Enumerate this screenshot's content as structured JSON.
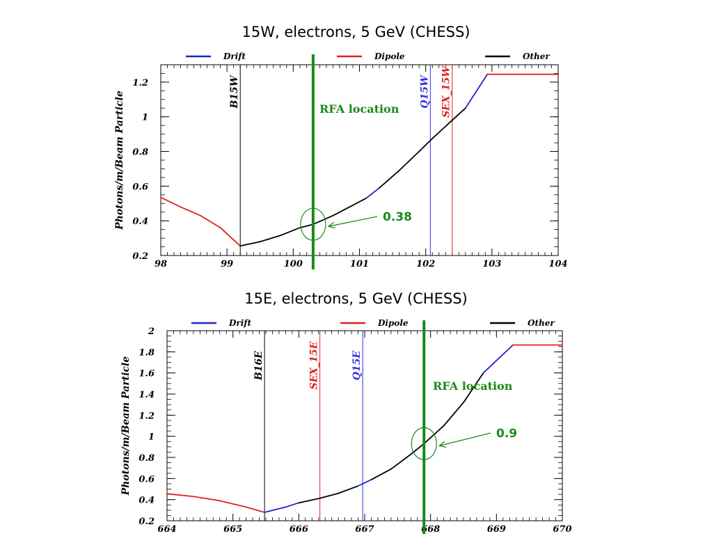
{
  "chart_data": [
    {
      "type": "line",
      "title": "15W, electrons, 5 GeV (CHESS)",
      "xlabel": "",
      "ylabel": "Photons/m/Beam Particle",
      "xlim": [
        98,
        104
      ],
      "ylim": [
        0.2,
        1.3
      ],
      "xticks": [
        "98",
        "99",
        "100",
        "101",
        "102",
        "103",
        "104"
      ],
      "yticks": [
        "0.2",
        "0.4",
        "0.6",
        "0.8",
        "1",
        "1.2"
      ],
      "legend_position": "top",
      "legend": [
        {
          "label": "Drift",
          "color": "#2020d0"
        },
        {
          "label": "Dipole",
          "color": "#e02020"
        },
        {
          "label": "Other",
          "color": "#000000"
        }
      ],
      "series": [
        {
          "name": "Dipole",
          "color": "#e02020",
          "points": [
            [
              98.0,
              0.535
            ],
            [
              98.3,
              0.48
            ],
            [
              98.6,
              0.43
            ],
            [
              98.9,
              0.36
            ],
            [
              99.2,
              0.255
            ]
          ]
        },
        {
          "name": "Other",
          "color": "#000000",
          "points": [
            [
              99.2,
              0.255
            ],
            [
              99.5,
              0.28
            ],
            [
              99.8,
              0.315
            ],
            [
              100.1,
              0.36
            ],
            [
              100.3,
              0.38
            ],
            [
              100.6,
              0.43
            ],
            [
              100.9,
              0.49
            ],
            [
              101.1,
              0.53
            ]
          ]
        },
        {
          "name": "Drift",
          "color": "#2020d0",
          "points": [
            [
              101.1,
              0.53
            ],
            [
              101.3,
              0.59
            ]
          ]
        },
        {
          "name": "Other",
          "color": "#000000",
          "points": [
            [
              101.3,
              0.59
            ],
            [
              101.6,
              0.69
            ],
            [
              101.9,
              0.8
            ],
            [
              102.1,
              0.875
            ],
            [
              102.4,
              0.98
            ],
            [
              102.6,
              1.05
            ]
          ]
        },
        {
          "name": "Drift",
          "color": "#2020d0",
          "points": [
            [
              102.6,
              1.05
            ],
            [
              102.93,
              1.245
            ]
          ]
        },
        {
          "name": "Dipole",
          "color": "#e02020",
          "points": [
            [
              102.93,
              1.245
            ],
            [
              104.0,
              1.245
            ]
          ]
        }
      ],
      "markers": [
        {
          "label": "B15W",
          "x": 99.2,
          "color": "#000000"
        },
        {
          "label": "Q15W",
          "x": 102.07,
          "color": "#3030e0"
        },
        {
          "label": "SEX_15W",
          "x": 102.4,
          "color": "#e02020"
        }
      ],
      "rfa": {
        "label": "RFA location",
        "x": 100.3,
        "value_label": "0.38",
        "value": 0.38,
        "color": "#1a8a1a"
      }
    },
    {
      "type": "line",
      "title": "15E, electrons, 5 GeV (CHESS)",
      "xlabel": "",
      "ylabel": "Photons/m/Beam Particle",
      "xlim": [
        664,
        670
      ],
      "ylim": [
        0.2,
        2.0
      ],
      "xticks": [
        "664",
        "665",
        "666",
        "667",
        "668",
        "669",
        "670"
      ],
      "yticks": [
        "0.2",
        "0.4",
        "0.6",
        "0.8",
        "1",
        "1.2",
        "1.4",
        "1.6",
        "1.8",
        "2"
      ],
      "legend_position": "top",
      "legend": [
        {
          "label": "Drift",
          "color": "#2020d0"
        },
        {
          "label": "Dipole",
          "color": "#e02020"
        },
        {
          "label": "Other",
          "color": "#000000"
        }
      ],
      "series": [
        {
          "name": "Dipole",
          "color": "#e02020",
          "points": [
            [
              664.0,
              0.455
            ],
            [
              664.4,
              0.43
            ],
            [
              664.8,
              0.39
            ],
            [
              665.2,
              0.33
            ],
            [
              665.48,
              0.28
            ]
          ]
        },
        {
          "name": "Drift",
          "color": "#2020d0",
          "points": [
            [
              665.48,
              0.28
            ],
            [
              665.8,
              0.33
            ],
            [
              666.0,
              0.37
            ]
          ]
        },
        {
          "name": "Other",
          "color": "#000000",
          "points": [
            [
              666.0,
              0.37
            ],
            [
              666.3,
              0.41
            ],
            [
              666.6,
              0.46
            ],
            [
              666.9,
              0.53
            ]
          ]
        },
        {
          "name": "Drift",
          "color": "#2020d0",
          "points": [
            [
              666.9,
              0.53
            ],
            [
              667.1,
              0.59
            ]
          ]
        },
        {
          "name": "Other",
          "color": "#000000",
          "points": [
            [
              667.1,
              0.59
            ],
            [
              667.4,
              0.69
            ],
            [
              667.7,
              0.83
            ],
            [
              667.9,
              0.93
            ],
            [
              668.2,
              1.1
            ],
            [
              668.5,
              1.32
            ],
            [
              668.8,
              1.6
            ]
          ]
        },
        {
          "name": "Drift",
          "color": "#2020d0",
          "points": [
            [
              668.8,
              1.6
            ],
            [
              669.25,
              1.865
            ]
          ]
        },
        {
          "name": "Dipole",
          "color": "#e02020",
          "points": [
            [
              669.25,
              1.865
            ],
            [
              670.0,
              1.865
            ]
          ]
        }
      ],
      "markers": [
        {
          "label": "B16E",
          "x": 665.48,
          "color": "#000000"
        },
        {
          "label": "SEX_15E",
          "x": 666.32,
          "color": "#e02020"
        },
        {
          "label": "Q15E",
          "x": 666.97,
          "color": "#3030e0"
        }
      ],
      "rfa": {
        "label": "RFA location",
        "x": 667.9,
        "value_label": "0.9",
        "value": 0.93,
        "color": "#1a8a1a"
      }
    }
  ]
}
